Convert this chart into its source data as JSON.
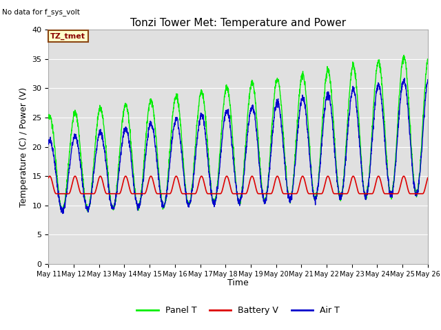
{
  "title": "Tonzi Tower Met: Temperature and Power",
  "ylabel": "Temperature (C) / Power (V)",
  "xlabel": "Time",
  "no_data_text": "No data for f_sys_volt",
  "label_box_text": "TZ_tmet",
  "ylim": [
    0,
    40
  ],
  "yticks": [
    0,
    5,
    10,
    15,
    20,
    25,
    30,
    35,
    40
  ],
  "x_labels": [
    "May 11",
    "May 12",
    "May 13",
    "May 14",
    "May 15",
    "May 16",
    "May 17",
    "May 18",
    "May 19",
    "May 20",
    "May 21",
    "May 22",
    "May 23",
    "May 24",
    "May 25",
    "May 26"
  ],
  "bg_color": "#e0e0e0",
  "panel_color": "#00ee00",
  "battery_color": "#dd0000",
  "air_color": "#0000cc",
  "legend_labels": [
    "Panel T",
    "Battery V",
    "Air T"
  ],
  "title_fontsize": 11,
  "axis_fontsize": 9,
  "tick_fontsize": 8
}
